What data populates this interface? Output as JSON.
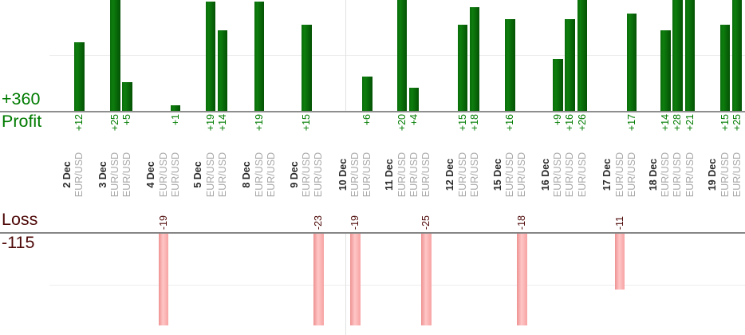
{
  "chart_data": {
    "type": "bar",
    "title": "",
    "profit_axis": {
      "total": "+360",
      "label": "Profit"
    },
    "loss_axis": {
      "label": "Loss",
      "total": "-115"
    },
    "groups": [
      {
        "date": "2 Dec",
        "trades": [
          {
            "instrument": "EUR/USD",
            "result": 12,
            "label": "+12"
          }
        ]
      },
      {
        "date": "3 Dec",
        "trades": [
          {
            "instrument": "EUR/USD",
            "result": 25,
            "label": "+25"
          },
          {
            "instrument": "EUR/USD",
            "result": 5,
            "label": "+5"
          }
        ]
      },
      {
        "date": "4 Dec",
        "trades": [
          {
            "instrument": "EUR/USD",
            "result": -19,
            "label": "-19"
          },
          {
            "instrument": "EUR/USD",
            "result": 1,
            "label": "+1"
          }
        ]
      },
      {
        "date": "5 Dec",
        "trades": [
          {
            "instrument": "EUR/USD",
            "result": 19,
            "label": "+19"
          },
          {
            "instrument": "EUR/USD",
            "result": 14,
            "label": "+14"
          }
        ]
      },
      {
        "date": "8 Dec",
        "trades": [
          {
            "instrument": "EUR/USD",
            "result": 19,
            "label": "+19"
          },
          {
            "instrument": "EUR/USD",
            "result": 0,
            "label": ""
          }
        ]
      },
      {
        "date": "9 Dec",
        "trades": [
          {
            "instrument": "EUR/USD",
            "result": 15,
            "label": "+15"
          },
          {
            "instrument": "EUR/USD",
            "result": -23,
            "label": "-23"
          }
        ]
      },
      {
        "date": "10 Dec",
        "trades": [
          {
            "instrument": "EUR/USD",
            "result": -19,
            "label": "-19"
          },
          {
            "instrument": "EUR/USD",
            "result": 6,
            "label": "+6"
          }
        ]
      },
      {
        "date": "11 Dec",
        "trades": [
          {
            "instrument": "EUR/USD",
            "result": 20,
            "label": "+20"
          },
          {
            "instrument": "EUR/USD",
            "result": 4,
            "label": "+4"
          },
          {
            "instrument": "EUR/USD",
            "result": -25,
            "label": "-25"
          }
        ]
      },
      {
        "date": "12 Dec",
        "trades": [
          {
            "instrument": "EUR/USD",
            "result": 15,
            "label": "+15"
          },
          {
            "instrument": "EUR/USD",
            "result": 18,
            "label": "+18"
          }
        ]
      },
      {
        "date": "15 Dec",
        "trades": [
          {
            "instrument": "EUR/USD",
            "result": 16,
            "label": "+16"
          },
          {
            "instrument": "EUR/USD",
            "result": -18,
            "label": "-18"
          }
        ]
      },
      {
        "date": "16 Dec",
        "trades": [
          {
            "instrument": "EUR/USD",
            "result": 9,
            "label": "+9"
          },
          {
            "instrument": "EUR/USD",
            "result": 16,
            "label": "+16"
          },
          {
            "instrument": "EUR/USD",
            "result": 26,
            "label": "+26"
          }
        ]
      },
      {
        "date": "17 Dec",
        "trades": [
          {
            "instrument": "EUR/USD",
            "result": -11,
            "label": "-11"
          },
          {
            "instrument": "EUR/USD",
            "result": 17,
            "label": "+17"
          }
        ]
      },
      {
        "date": "18 Dec",
        "trades": [
          {
            "instrument": "EUR/USD",
            "result": 14,
            "label": "+14"
          },
          {
            "instrument": "EUR/USD",
            "result": 28,
            "label": "+28"
          },
          {
            "instrument": "EUR/USD",
            "result": 21,
            "label": "+21"
          }
        ]
      },
      {
        "date": "19 Dec",
        "trades": [
          {
            "instrument": "EUR/USD",
            "result": 15,
            "label": "+15"
          },
          {
            "instrument": "EUR/USD",
            "result": 25,
            "label": "+25"
          }
        ]
      }
    ],
    "colors": {
      "profit_bar": "#0a6e0a",
      "profit_text": "#007b00",
      "loss_bar": "#f8a8a8",
      "loss_text": "#4e0808",
      "date_text": "#2b2b2b",
      "instrument_text": "#a8a8a8",
      "axis_line": "#8e8e8e",
      "gridline": "#ededed"
    }
  }
}
